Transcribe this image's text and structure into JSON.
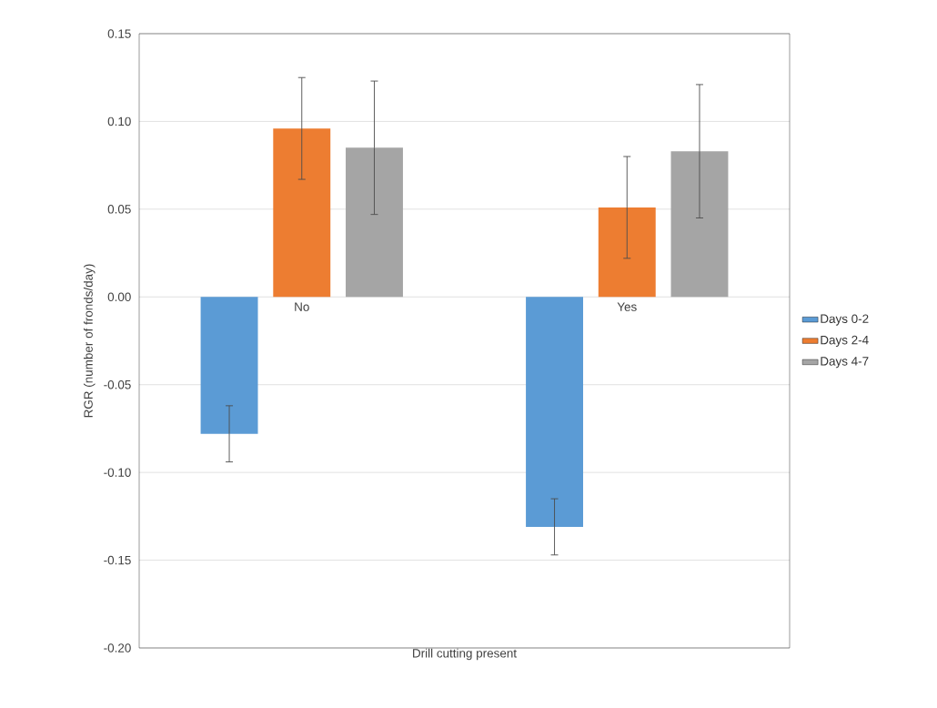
{
  "chart_data": {
    "type": "bar",
    "xlabel": "Drill cutting present",
    "ylabel": "RGR (number of fronds/day)",
    "categories": [
      "No",
      "Yes"
    ],
    "series": [
      {
        "name": "Days 0-2",
        "color": "#5b9bd5",
        "values": [
          -0.078,
          -0.131
        ],
        "errors": [
          0.016,
          0.016
        ]
      },
      {
        "name": "Days 2-4",
        "color": "#ed7d31",
        "values": [
          0.096,
          0.051
        ],
        "errors": [
          0.029,
          0.029
        ]
      },
      {
        "name": "Days 4-7",
        "color": "#a5a5a5",
        "values": [
          0.085,
          0.083
        ],
        "errors": [
          0.038,
          0.038
        ]
      }
    ],
    "ylim": [
      -0.2,
      0.15
    ],
    "yticks": [
      {
        "value": -0.2,
        "label": "-0.20"
      },
      {
        "value": -0.15,
        "label": "-0.15"
      },
      {
        "value": -0.1,
        "label": "-0.10"
      },
      {
        "value": -0.05,
        "label": "-0.05"
      },
      {
        "value": 0,
        "label": "0.00"
      },
      {
        "value": 0.05,
        "label": "0.05"
      },
      {
        "value": 0.1,
        "label": "0.10"
      },
      {
        "value": 0.15,
        "label": "0.15"
      }
    ],
    "grid": "y",
    "legend": "right"
  }
}
